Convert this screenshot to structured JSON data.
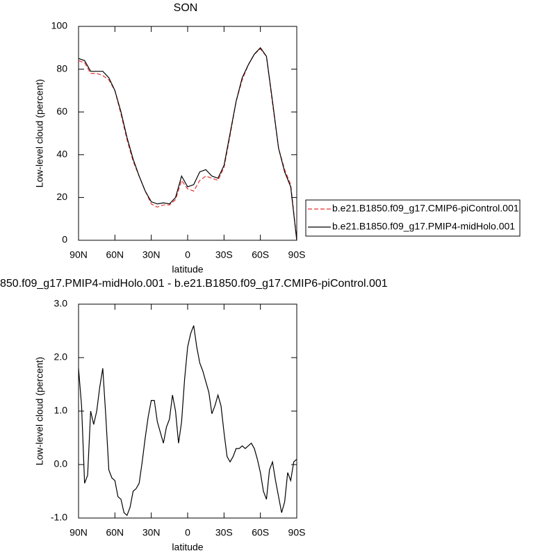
{
  "chart_data": [
    {
      "type": "line",
      "title": "SON",
      "xlabel": "latitude",
      "ylabel": "Low-level cloud (percent)",
      "x": [
        90,
        85,
        80,
        75,
        70,
        65,
        60,
        55,
        50,
        45,
        40,
        35,
        30,
        25,
        20,
        15,
        10,
        5,
        0,
        -5,
        -10,
        -15,
        -20,
        -25,
        -30,
        -35,
        -40,
        -45,
        -50,
        -55,
        -60,
        -65,
        -70,
        -75,
        -80,
        -85,
        -90
      ],
      "xlim": [
        90,
        -90
      ],
      "xticks": [
        {
          "value": 90,
          "label": "90N"
        },
        {
          "value": 60,
          "label": "60N"
        },
        {
          "value": 30,
          "label": "30N"
        },
        0,
        {
          "value": -30,
          "label": "30S"
        },
        {
          "value": -60,
          "label": "60S"
        },
        {
          "value": -90,
          "label": "90S"
        }
      ],
      "ylim": [
        0,
        100
      ],
      "yticks": [
        0,
        20,
        40,
        60,
        80,
        100
      ],
      "series": [
        {
          "name": "b.e21.B1850.f09_g17.CMIP6-piControl.001",
          "color": "#e8302e",
          "dashed": true,
          "values": [
            84,
            83,
            78,
            78,
            77,
            75,
            70,
            59,
            47,
            37,
            30,
            23,
            17,
            15.5,
            16.5,
            16.5,
            19,
            28,
            24,
            23,
            28,
            30,
            29,
            28,
            34,
            49,
            65,
            75,
            82,
            87,
            89.5,
            86,
            64,
            43,
            33,
            26,
            0
          ]
        },
        {
          "name": "b.e21.B1850.f09_g17.PMIP4-midHolo.001",
          "color": "#000000",
          "dashed": false,
          "values": [
            85,
            84,
            79,
            79,
            79,
            76,
            70,
            60,
            48,
            38,
            30,
            23,
            18,
            17,
            17.5,
            17,
            20,
            30,
            25,
            26,
            32,
            33,
            30,
            29,
            35,
            50,
            65,
            76,
            82,
            87,
            90,
            86,
            65,
            43,
            32,
            25,
            0
          ]
        }
      ]
    },
    {
      "type": "line",
      "title": "850.f09_g17.PMIP4-midHolo.001 - b.e21.B1850.f09_g17.CMIP6-piControl.001",
      "xlabel": "latitude",
      "ylabel": "Low-level cloud (percent)",
      "x": [
        90,
        87.5,
        85,
        82.5,
        80,
        77.5,
        75,
        72.5,
        70,
        67.5,
        65,
        62.5,
        60,
        57.5,
        55,
        52.5,
        50,
        47.5,
        45,
        42.5,
        40,
        37.5,
        35,
        32.5,
        30,
        27.5,
        25,
        22.5,
        20,
        17.5,
        15,
        12.5,
        10,
        7.5,
        5,
        2.5,
        0,
        -2.5,
        -5,
        -7.5,
        -10,
        -12.5,
        -15,
        -17.5,
        -20,
        -22.5,
        -25,
        -27.5,
        -30,
        -32.5,
        -35,
        -37.5,
        -40,
        -42.5,
        -45,
        -47.5,
        -50,
        -52.5,
        -55,
        -57.5,
        -60,
        -62.5,
        -65,
        -67.5,
        -70,
        -72.5,
        -75,
        -77.5,
        -80,
        -82.5,
        -85,
        -87.5,
        -90
      ],
      "xlim": [
        90,
        -90
      ],
      "xticks": [
        {
          "value": 90,
          "label": "90N"
        },
        {
          "value": 60,
          "label": "60N"
        },
        {
          "value": 30,
          "label": "30N"
        },
        0,
        {
          "value": -30,
          "label": "30S"
        },
        {
          "value": -60,
          "label": "60S"
        },
        {
          "value": -90,
          "label": "90S"
        }
      ],
      "ylim": [
        -1,
        3
      ],
      "yticks": [
        {
          "value": -1,
          "label": "-1.0"
        },
        {
          "value": 0,
          "label": "0.0"
        },
        {
          "value": 1,
          "label": "1.0"
        },
        {
          "value": 2,
          "label": "2.0"
        },
        {
          "value": 3,
          "label": "3.0"
        }
      ],
      "series": [
        {
          "color": "#000000",
          "dashed": false,
          "values": [
            1.8,
            1.1,
            -0.35,
            -0.2,
            1.0,
            0.75,
            1.0,
            1.45,
            1.8,
            0.9,
            -0.1,
            -0.25,
            -0.3,
            -0.6,
            -0.65,
            -0.9,
            -0.95,
            -0.8,
            -0.5,
            -0.45,
            -0.35,
            0.05,
            0.5,
            0.9,
            1.2,
            1.2,
            0.8,
            0.6,
            0.4,
            0.7,
            0.85,
            1.3,
            1.0,
            0.4,
            0.8,
            1.6,
            2.2,
            2.45,
            2.6,
            2.2,
            1.9,
            1.75,
            1.55,
            1.35,
            0.95,
            1.1,
            1.3,
            1.1,
            0.6,
            0.15,
            0.05,
            0.15,
            0.3,
            0.3,
            0.35,
            0.3,
            0.35,
            0.4,
            0.3,
            0.1,
            -0.15,
            -0.5,
            -0.65,
            -0.1,
            0.05,
            -0.3,
            -0.6,
            -0.9,
            -0.7,
            -0.15,
            -0.3,
            0.05,
            0.1
          ]
        }
      ]
    }
  ]
}
